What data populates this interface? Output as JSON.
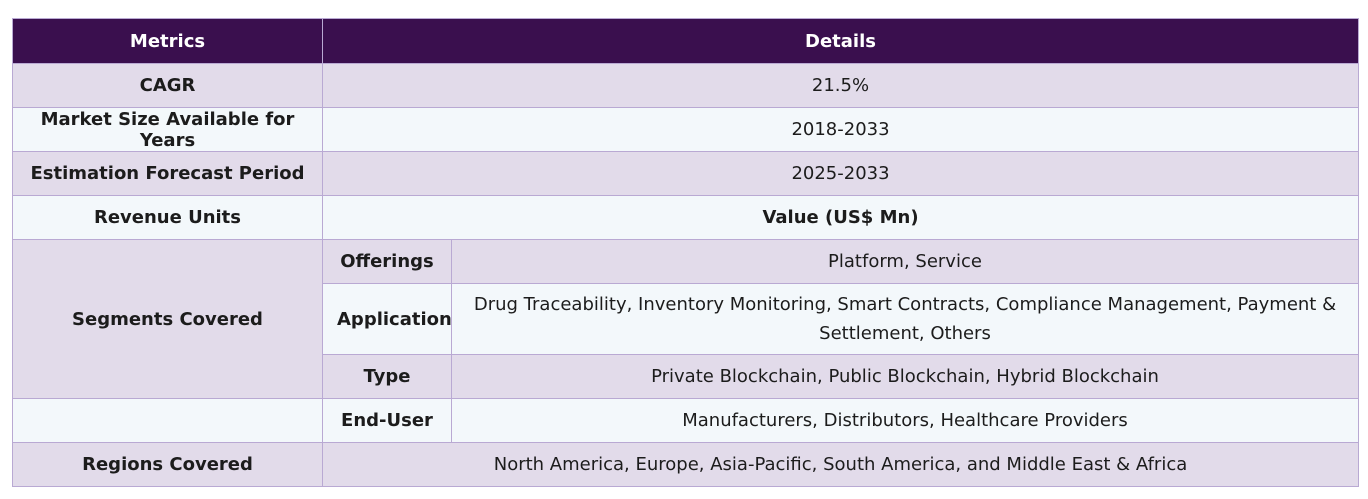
{
  "table": {
    "headers": {
      "metrics": "Metrics",
      "details": "Details"
    },
    "cagr": {
      "label": "CAGR",
      "value": "21.5%"
    },
    "market_size": {
      "label": "Market Size Available for Years",
      "value": "2018-2033"
    },
    "forecast": {
      "label": "Estimation Forecast Period",
      "value": "2025-2033"
    },
    "revenue": {
      "label": "Revenue Units",
      "value": "Value (US$ Mn)"
    },
    "segments": {
      "label": "Segments Covered",
      "offerings": {
        "label": "Offerings",
        "value": "Platform, Service"
      },
      "application": {
        "label": "Application",
        "value": "Drug Traceability, Inventory Monitoring, Smart Contracts, Compliance Management, Payment & Settlement, Others"
      },
      "type": {
        "label": "Type",
        "value": "Private Blockchain, Public Blockchain, Hybrid Blockchain"
      },
      "end_user": {
        "label": "End-User",
        "value": "Manufacturers, Distributors, Healthcare Providers"
      }
    },
    "regions": {
      "label": "Regions Covered",
      "value": "North America, Europe, Asia-Pacific, South America, and Middle East & Africa"
    }
  }
}
